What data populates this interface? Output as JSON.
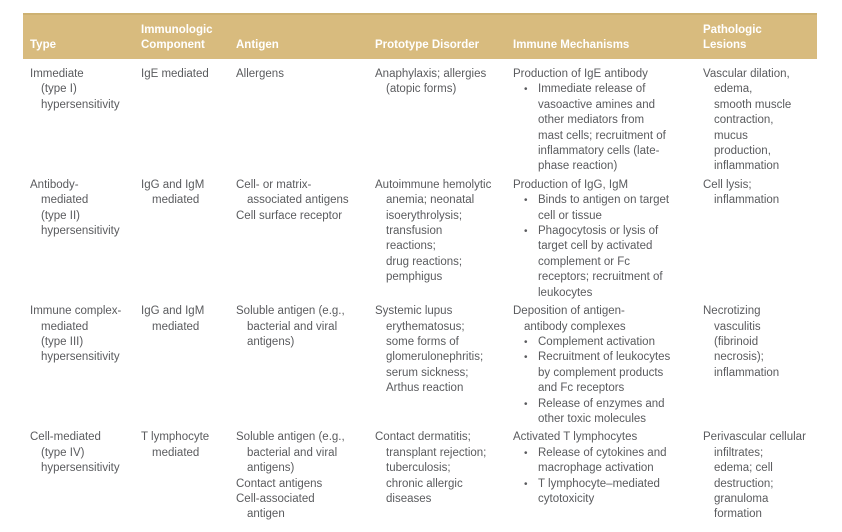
{
  "table": {
    "colors": {
      "header_bg": "#d8bb7e",
      "header_border": "#cdb172",
      "header_text": "#ffffff",
      "body_text": "#5a5b5e",
      "page_bg": "#ffffff"
    },
    "bullet_glyph": "•",
    "columns": [
      "Type",
      "Immunologic\nComponent",
      "Antigen",
      "Prototype Disorder",
      "Immune Mechanisms",
      "Pathologic\nLesions"
    ],
    "col_keys": [
      "type",
      "immunologic",
      "antigen",
      "prototype",
      "immune",
      "pathologic"
    ],
    "rows": [
      {
        "type": [
          {
            "t": "Immediate"
          },
          {
            "t": "(type I)",
            "i": 1
          },
          {
            "t": "hypersensitivity",
            "i": 1
          }
        ],
        "immunologic": [
          {
            "t": "IgE mediated"
          }
        ],
        "antigen": [
          {
            "t": "Allergens"
          }
        ],
        "prototype": [
          {
            "t": "Anaphylaxis; allergies"
          },
          {
            "t": "(atopic forms)",
            "i": 1
          }
        ],
        "immune": [
          {
            "t": "Production of IgE antibody"
          },
          {
            "t": "Immediate release of",
            "b": true
          },
          {
            "t": "vasoactive amines and",
            "i": 2
          },
          {
            "t": "other mediators from",
            "i": 2
          },
          {
            "t": "mast cells; recruitment of",
            "i": 2
          },
          {
            "t": "inflammatory cells (late-",
            "i": 2
          },
          {
            "t": "phase reaction)",
            "i": 2
          }
        ],
        "pathologic": [
          {
            "t": "Vascular dilation,"
          },
          {
            "t": "edema,",
            "i": 1
          },
          {
            "t": "smooth muscle",
            "i": 1
          },
          {
            "t": "contraction,",
            "i": 1
          },
          {
            "t": "mucus",
            "i": 1
          },
          {
            "t": "production,",
            "i": 1
          },
          {
            "t": "inflammation",
            "i": 1
          }
        ]
      },
      {
        "type": [
          {
            "t": "Antibody-"
          },
          {
            "t": "mediated",
            "i": 1
          },
          {
            "t": "(type II)",
            "i": 1
          },
          {
            "t": "hypersensitivity",
            "i": 1
          }
        ],
        "immunologic": [
          {
            "t": "IgG and IgM"
          },
          {
            "t": "mediated",
            "i": 1
          }
        ],
        "antigen": [
          {
            "t": "Cell- or matrix-"
          },
          {
            "t": "associated antigens",
            "i": 1
          },
          {
            "t": "Cell surface receptor"
          }
        ],
        "prototype": [
          {
            "t": "Autoimmune hemolytic"
          },
          {
            "t": "anemia; neonatal",
            "i": 1
          },
          {
            "t": "isoerythrolysis;",
            "i": 1
          },
          {
            "t": "transfusion",
            "i": 1
          },
          {
            "t": "reactions;",
            "i": 1
          },
          {
            "t": "drug reactions;",
            "i": 1
          },
          {
            "t": "pemphigus",
            "i": 1
          }
        ],
        "immune": [
          {
            "t": "Production of IgG, IgM"
          },
          {
            "t": "Binds to antigen on target",
            "b": true
          },
          {
            "t": "cell or tissue",
            "i": 2
          },
          {
            "t": "Phagocytosis or lysis of",
            "b": true
          },
          {
            "t": "target cell by activated",
            "i": 2
          },
          {
            "t": "complement or Fc",
            "i": 2
          },
          {
            "t": "receptors; recruitment of",
            "i": 2
          },
          {
            "t": "leukocytes",
            "i": 2
          }
        ],
        "pathologic": [
          {
            "t": "Cell lysis;"
          },
          {
            "t": "inflammation",
            "i": 1
          }
        ]
      },
      {
        "type": [
          {
            "t": "Immune complex-"
          },
          {
            "t": "mediated",
            "i": 1
          },
          {
            "t": "(type III)",
            "i": 1
          },
          {
            "t": "hypersensitivity",
            "i": 1
          }
        ],
        "immunologic": [
          {
            "t": "IgG and IgM"
          },
          {
            "t": "mediated",
            "i": 1
          }
        ],
        "antigen": [
          {
            "t": "Soluble antigen (e.g.,"
          },
          {
            "t": "bacterial and viral",
            "i": 1
          },
          {
            "t": "antigens)",
            "i": 1
          }
        ],
        "prototype": [
          {
            "t": "Systemic lupus"
          },
          {
            "t": "erythematosus;",
            "i": 1
          },
          {
            "t": "some forms of",
            "i": 1
          },
          {
            "t": "glomerulonephritis;",
            "i": 1
          },
          {
            "t": "serum sickness;",
            "i": 1
          },
          {
            "t": "Arthus reaction",
            "i": 1
          }
        ],
        "immune": [
          {
            "t": "Deposition of antigen-"
          },
          {
            "t": "antibody complexes",
            "i": 1
          },
          {
            "t": "Complement activation",
            "b": true
          },
          {
            "t": "Recruitment of leukocytes",
            "b": true
          },
          {
            "t": "by complement products",
            "i": 2
          },
          {
            "t": "and Fc receptors",
            "i": 2
          },
          {
            "t": "Release of enzymes and",
            "b": true
          },
          {
            "t": "other toxic molecules",
            "i": 2
          }
        ],
        "pathologic": [
          {
            "t": "Necrotizing"
          },
          {
            "t": "vasculitis",
            "i": 1
          },
          {
            "t": "(fibrinoid",
            "i": 1
          },
          {
            "t": "necrosis);",
            "i": 1
          },
          {
            "t": "inflammation",
            "i": 1
          }
        ]
      },
      {
        "type": [
          {
            "t": "Cell-mediated"
          },
          {
            "t": "(type IV)",
            "i": 1
          },
          {
            "t": "hypersensitivity",
            "i": 1
          }
        ],
        "immunologic": [
          {
            "t": "T lymphocyte"
          },
          {
            "t": "mediated",
            "i": 1
          }
        ],
        "antigen": [
          {
            "t": "Soluble antigen (e.g.,"
          },
          {
            "t": "bacterial and viral",
            "i": 1
          },
          {
            "t": "antigens)",
            "i": 1
          },
          {
            "t": "Contact antigens"
          },
          {
            "t": "Cell-associated"
          },
          {
            "t": "antigen",
            "i": 1
          }
        ],
        "prototype": [
          {
            "t": "Contact dermatitis;"
          },
          {
            "t": "transplant rejection;",
            "i": 1
          },
          {
            "t": "tuberculosis;",
            "i": 1
          },
          {
            "t": "chronic allergic",
            "i": 1
          },
          {
            "t": "diseases",
            "i": 1
          }
        ],
        "immune": [
          {
            "t": "Activated T lymphocytes"
          },
          {
            "t": "Release of cytokines and",
            "b": true
          },
          {
            "t": "macrophage activation",
            "i": 2
          },
          {
            "t": "T lymphocyte–mediated",
            "b": true
          },
          {
            "t": "cytotoxicity",
            "i": 2
          }
        ],
        "pathologic": [
          {
            "t": "Perivascular cellular"
          },
          {
            "t": "infiltrates;",
            "i": 1
          },
          {
            "t": "edema; cell",
            "i": 1
          },
          {
            "t": "destruction;",
            "i": 1
          },
          {
            "t": "granuloma",
            "i": 1
          },
          {
            "t": "formation",
            "i": 1
          }
        ]
      }
    ]
  }
}
